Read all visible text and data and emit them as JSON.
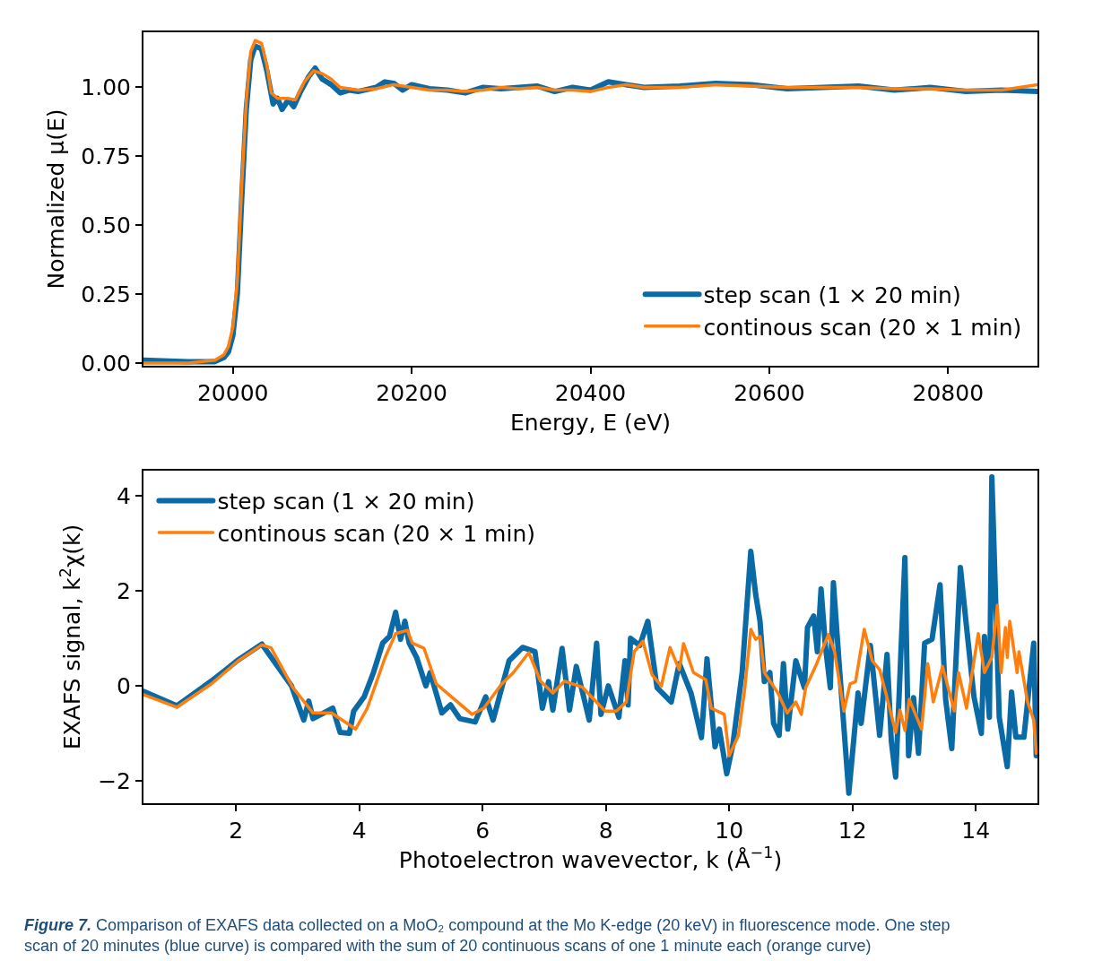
{
  "chart_data": [
    {
      "type": "line",
      "xlabel": "Energy, E (eV)",
      "ylabel": "Normalized μ(E)",
      "xlim": [
        19900,
        20900
      ],
      "ylim": [
        -0.01,
        1.2
      ],
      "xticks": [
        20000,
        20200,
        20400,
        20600,
        20800
      ],
      "yticks": [
        {
          "value": 0,
          "label": "0.00"
        },
        {
          "value": 0.25,
          "label": "0.25"
        },
        {
          "value": 0.5,
          "label": "0.50"
        },
        {
          "value": 0.75,
          "label": "0.75"
        },
        {
          "value": 1,
          "label": "1.00"
        }
      ],
      "legend": "bottom right",
      "marker": "none",
      "line_style": "solid",
      "series": [
        {
          "name": "step scan (1 × 20 min)",
          "color": "#0a6aa6",
          "x": [
            19900,
            19950,
            19980,
            19990,
            19995,
            20000,
            20005,
            20010,
            20015,
            20020,
            20025,
            20032,
            20038,
            20045,
            20050,
            20055,
            20062,
            20068,
            20075,
            20085,
            20092,
            20100,
            20110,
            20120,
            20130,
            20140,
            20160,
            20170,
            20180,
            20190,
            20200,
            20220,
            20240,
            20260,
            20280,
            20300,
            20320,
            20340,
            20360,
            20380,
            20400,
            20420,
            20440,
            20460,
            20500,
            20540,
            20580,
            20620,
            20660,
            20700,
            20740,
            20780,
            20820,
            20860,
            20900
          ],
          "values": [
            0.01,
            0.005,
            0.005,
            0.02,
            0.04,
            0.1,
            0.25,
            0.6,
            0.92,
            1.1,
            1.15,
            1.14,
            1.06,
            0.94,
            0.96,
            0.92,
            0.955,
            0.93,
            0.98,
            1.04,
            1.07,
            1.03,
            1.01,
            0.98,
            0.99,
            0.985,
            1.0,
            1.02,
            1.015,
            0.99,
            1.01,
            0.995,
            0.99,
            0.98,
            1.0,
            0.995,
            1.0,
            1.005,
            0.985,
            1.0,
            0.99,
            1.02,
            1.01,
            1.0,
            1.005,
            1.015,
            1.01,
            0.995,
            1.0,
            1.005,
            0.99,
            1.0,
            0.985,
            0.99,
            0.985
          ]
        },
        {
          "name": "continous scan (20 × 1 min)",
          "color": "#ff7f0e",
          "x": [
            19900,
            19950,
            19980,
            19990,
            19995,
            20000,
            20005,
            20010,
            20015,
            20020,
            20025,
            20032,
            20038,
            20043,
            20050,
            20060,
            20070,
            20080,
            20090,
            20100,
            20110,
            20120,
            20140,
            20160,
            20180,
            20200,
            20220,
            20240,
            20260,
            20280,
            20300,
            20320,
            20340,
            20360,
            20380,
            20400,
            20420,
            20440,
            20460,
            20500,
            20540,
            20580,
            20620,
            20660,
            20700,
            20740,
            20780,
            20820,
            20860,
            20900
          ],
          "values": [
            0.0,
            0.0,
            0.01,
            0.03,
            0.06,
            0.13,
            0.3,
            0.65,
            0.95,
            1.13,
            1.17,
            1.16,
            1.08,
            0.98,
            0.96,
            0.96,
            0.955,
            1.02,
            1.06,
            1.05,
            1.03,
            1.0,
            0.99,
            0.995,
            1.01,
            1.0,
            0.99,
            0.99,
            0.985,
            0.99,
            1.0,
            0.995,
            1.0,
            0.99,
            0.99,
            0.985,
            1.0,
            1.01,
            1.0,
            1.0,
            1.01,
            1.005,
            1.0,
            1.0,
            1.0,
            0.995,
            0.995,
            0.99,
            0.99,
            1.01
          ]
        }
      ]
    },
    {
      "type": "line",
      "xlabel": "Photoelectron wavevector, k (Å$^{−1}$)",
      "ylabel": "EXAFS signal, k$^{2}$χ(k)",
      "xlim": [
        0.5,
        15
      ],
      "ylim": [
        -2.47,
        4.53
      ],
      "xticks": [
        2,
        4,
        6,
        8,
        10,
        12,
        14
      ],
      "yticks": [
        {
          "value": -2,
          "label": "−2"
        },
        0,
        2,
        4
      ],
      "legend": "top left",
      "marker": "none",
      "line_style": "solid",
      "annotations": [
        "Figure 7. Comparison of EXAFS data collected on a MoO₂ compound at the Mo K-edge (20 keV) in fluorescence mode. One step scan of 20 minutes (blue curve) is compared with the sum of 20 continuous scans of one 1 minute each (orange curve)"
      ],
      "series": [
        {
          "name": "step scan (1 × 20 min)",
          "color": "#0a6aa6",
          "x": [
            0.51,
            1.04,
            1.6,
            2.04,
            2.42,
            2.9,
            3.1,
            3.18,
            3.25,
            3.57,
            3.69,
            3.84,
            3.91,
            4.08,
            4.23,
            4.38,
            4.49,
            4.59,
            4.67,
            4.74,
            4.81,
            4.93,
            5.08,
            5.15,
            5.34,
            5.48,
            5.63,
            5.88,
            6.05,
            6.17,
            6.43,
            6.65,
            6.85,
            6.97,
            7.07,
            7.14,
            7.29,
            7.41,
            7.52,
            7.73,
            7.85,
            7.92,
            8.04,
            8.21,
            8.31,
            8.36,
            8.4,
            8.55,
            8.68,
            8.83,
            9.06,
            9.19,
            9.38,
            9.55,
            9.64,
            9.77,
            9.84,
            9.96,
            10.06,
            10.21,
            10.35,
            10.43,
            10.5,
            10.57,
            10.66,
            10.72,
            10.81,
            10.88,
            10.95,
            11.08,
            11.22,
            11.27,
            11.37,
            11.43,
            11.49,
            11.56,
            11.64,
            11.69,
            11.78,
            11.94,
            12.09,
            12.14,
            12.29,
            12.44,
            12.56,
            12.63,
            12.7,
            12.85,
            12.91,
            12.99,
            13.07,
            13.17,
            13.29,
            13.42,
            13.51,
            13.61,
            13.75,
            13.85,
            13.97,
            14.09,
            14.14,
            14.22,
            14.26,
            14.38,
            14.51,
            14.58,
            14.65,
            14.78,
            14.94,
            14.98
          ],
          "values": [
            -0.12,
            -0.42,
            0.1,
            0.55,
            0.88,
            0.0,
            -0.72,
            -0.32,
            -0.69,
            -0.47,
            -0.98,
            -1.0,
            -0.53,
            -0.23,
            0.28,
            0.9,
            1.04,
            1.55,
            0.98,
            1.36,
            0.9,
            0.6,
            0.0,
            0.28,
            -0.57,
            -0.4,
            -0.69,
            -0.76,
            -0.23,
            -0.72,
            0.53,
            0.81,
            0.72,
            -0.47,
            0.09,
            -0.51,
            0.79,
            -0.51,
            0.41,
            -0.72,
            0.9,
            -0.6,
            0.0,
            -0.66,
            0.53,
            -0.4,
            1.0,
            0.85,
            1.36,
            -0.04,
            -0.34,
            0.47,
            -0.15,
            -1.09,
            0.57,
            -1.28,
            -0.91,
            -1.85,
            -1.23,
            0.28,
            2.83,
            1.92,
            1.36,
            0.09,
            0.28,
            -0.79,
            -1.04,
            0.47,
            -0.91,
            0.53,
            -0.04,
            1.23,
            1.47,
            0.72,
            2.04,
            0.85,
            -0.04,
            2.17,
            0.53,
            -2.26,
            -0.15,
            -0.79,
            0.85,
            -1.04,
            0.66,
            -1.17,
            -1.92,
            2.7,
            -1.47,
            -0.25,
            -1.42,
            0.9,
            0.98,
            2.13,
            -0.28,
            -1.32,
            2.49,
            1.23,
            -0.23,
            -1.0,
            1.04,
            -0.66,
            4.4,
            -0.66,
            -1.7,
            -0.13,
            -1.08,
            -1.08,
            0.9,
            -1.47
          ]
        },
        {
          "name": "continous scan (20 × 1 min)",
          "color": "#ff7f0e",
          "x": [
            0.51,
            1.04,
            1.6,
            2.04,
            2.42,
            2.57,
            2.92,
            3.25,
            3.55,
            3.94,
            4.13,
            4.42,
            4.59,
            4.78,
            4.86,
            5.05,
            5.25,
            5.54,
            5.83,
            6.02,
            6.31,
            6.5,
            6.75,
            6.94,
            7.14,
            7.33,
            7.62,
            7.89,
            7.99,
            8.17,
            8.33,
            8.46,
            8.6,
            8.75,
            8.9,
            9.04,
            9.19,
            9.26,
            9.42,
            9.62,
            9.71,
            9.92,
            10.0,
            10.15,
            10.25,
            10.35,
            10.43,
            10.5,
            10.57,
            10.79,
            10.94,
            11.08,
            11.17,
            11.24,
            11.42,
            11.61,
            11.71,
            11.86,
            11.96,
            12.05,
            12.19,
            12.32,
            12.44,
            12.54,
            12.7,
            12.77,
            12.85,
            12.92,
            13.12,
            13.22,
            13.31,
            13.46,
            13.65,
            13.72,
            13.85,
            14.04,
            14.14,
            14.26,
            14.35,
            14.41,
            14.48,
            14.51,
            14.55,
            14.67,
            14.7,
            14.84,
            14.94,
            14.98
          ],
          "values": [
            -0.19,
            -0.45,
            0.04,
            0.53,
            0.86,
            0.8,
            -0.03,
            -0.57,
            -0.57,
            -0.91,
            -0.47,
            0.6,
            1.1,
            1.17,
            0.9,
            0.79,
            0.04,
            -0.28,
            -0.6,
            -0.47,
            0.04,
            0.28,
            0.7,
            0.1,
            -0.15,
            0.1,
            -0.03,
            -0.4,
            -0.53,
            -0.53,
            -0.34,
            0.72,
            0.94,
            0.23,
            0.0,
            0.81,
            0.34,
            0.89,
            0.28,
            0.13,
            -0.47,
            -0.6,
            -1.47,
            -1.04,
            -0.09,
            1.19,
            0.98,
            1.04,
            0.28,
            -0.15,
            -0.57,
            -0.34,
            -0.6,
            -0.04,
            0.47,
            1.08,
            0.72,
            -0.53,
            0.04,
            0.09,
            1.19,
            0.53,
            0.34,
            -0.15,
            -0.98,
            -0.51,
            -0.94,
            -0.28,
            -0.91,
            0.47,
            -0.34,
            0.41,
            -0.53,
            0.28,
            -0.47,
            1.1,
            0.28,
            0.6,
            1.7,
            0.28,
            1.23,
            0.6,
            1.36,
            0.28,
            0.72,
            -0.34,
            -0.72,
            -1.42
          ]
        }
      ]
    }
  ]
}
